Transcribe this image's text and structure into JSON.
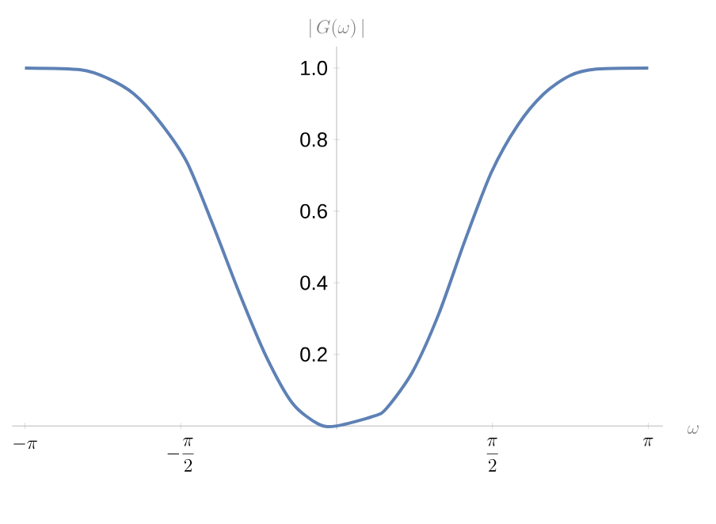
{
  "chart_data": {
    "type": "line",
    "xlabel": "\\omega",
    "ylabel": "|\\,G(\\omega)\\,|",
    "x": [
      -3.142,
      -2.576,
      -2.312,
      -2.045,
      -1.778,
      -1.511,
      -1.247,
      -0.98,
      -0.713,
      -0.446,
      -0.182,
      0,
      0.37,
      0.503,
      0.767,
      1.03,
      1.294,
      1.561,
      1.825,
      2.089,
      2.353,
      2.617,
      3.142
    ],
    "series": [
      {
        "color": "#5e81b5",
        "values": [
          1.0,
          0.995,
          0.972,
          0.928,
          0.848,
          0.738,
          0.562,
          0.371,
          0.196,
          0.064,
          0.005,
          0.0,
          0.027,
          0.049,
          0.152,
          0.313,
          0.518,
          0.709,
          0.84,
          0.928,
          0.979,
          0.997,
          1.0
        ]
      }
    ],
    "xlim": [
      -3.27,
      3.29
    ],
    "ylim": [
      -0.01,
      1.06
    ],
    "xticks": [
      {
        "value": -3.14159,
        "label": "-\\pi"
      },
      {
        "value": -1.5708,
        "label": "-\\frac{\\pi}{2}"
      },
      {
        "value": 1.5708,
        "label": "\\frac{\\pi}{2}"
      },
      {
        "value": 3.14159,
        "label": "\\pi"
      }
    ],
    "yticks": [
      0.2,
      0.4,
      0.6,
      {
        "value": 0.8,
        "label": "0.8"
      },
      {
        "value": 1,
        "label": "1.0"
      }
    ],
    "grid": false,
    "marker": "none",
    "line_style": "solid"
  }
}
